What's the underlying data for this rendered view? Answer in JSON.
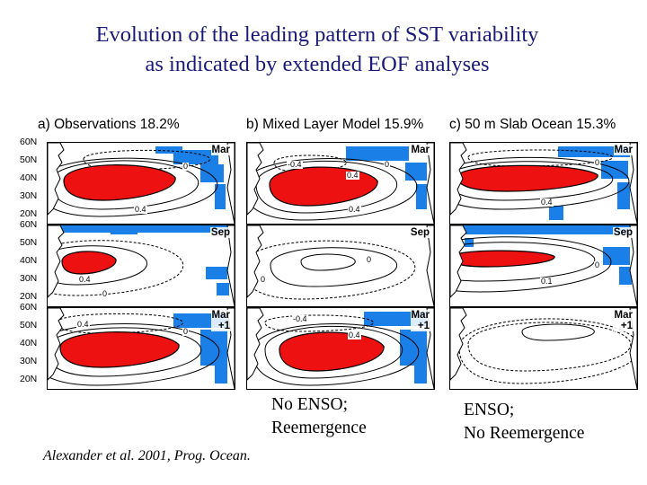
{
  "slide": {
    "title_line1": "Evolution of the leading pattern of SST variability",
    "title_line2": "as indicated by extended EOF analyses",
    "caption_middle_line1": "No ENSO;",
    "caption_middle_line2": "Reemergence",
    "caption_right_line1": "ENSO;",
    "caption_right_line2": "No Reemergence",
    "citation": "Alexander et al. 2001, Prog. Ocean."
  },
  "figure": {
    "columns": [
      {
        "title": "a) Observations  18.2%"
      },
      {
        "title": "b) Mixed Layer Model  15.9%"
      },
      {
        "title": "c) 50  m Slab Ocean  15.3%"
      }
    ],
    "rows": [
      {
        "season": "Mar",
        "season_line2": "",
        "lat_labels": [
          "60N",
          "50N",
          "40N",
          "30N",
          "20N"
        ]
      },
      {
        "season": "Sep",
        "season_line2": "",
        "lat_labels": [
          "60N",
          "50N",
          "40N",
          "30N",
          "20N"
        ]
      },
      {
        "season": "Mar",
        "season_line2": "+1",
        "lat_labels": [
          "60N",
          "50N",
          "40N",
          "30N",
          "20N"
        ]
      }
    ],
    "contour_labels": {
      "pos": "0.4",
      "neg": "-0.4",
      "zero": "0",
      "pos_small": "0.1"
    },
    "colors": {
      "positive_fill": "#ee1111",
      "negative_fill": "#1a7fe6",
      "contour": "#000000",
      "title_text": "#1a1a7a"
    }
  }
}
